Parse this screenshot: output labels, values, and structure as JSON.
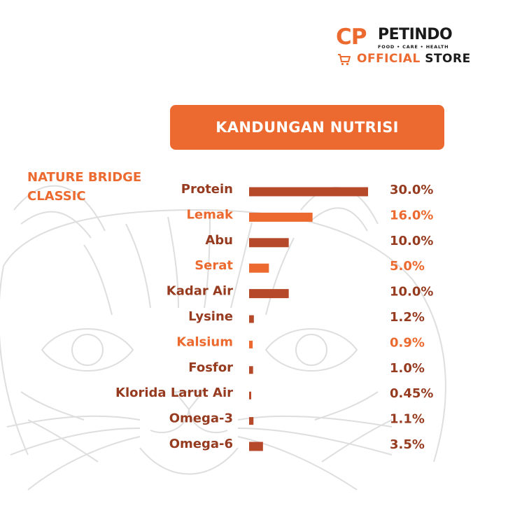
{
  "logo": {
    "cp": "CP",
    "name": "PETINDO",
    "tagline": "FOOD • CARE • HEALTH",
    "official": "OFFICIAL",
    "store": "STORE"
  },
  "banner": {
    "title": "KANDUNGAN NUTRISI"
  },
  "product": {
    "line1": "NATURE BRIDGE",
    "line2": "CLASSIC"
  },
  "colors": {
    "accent": "#ec6a2f",
    "bar_dark": "#b6492a",
    "text_dark": "#963b1f",
    "text_orange": "#ec6a2f"
  },
  "icons": {
    "cart": "shopping-cart-icon",
    "background": "cat-face-illustration"
  },
  "chart_data": {
    "type": "bar",
    "orientation": "horizontal",
    "title": "KANDUNGAN NUTRISI",
    "categories": [
      "Protein",
      "Lemak",
      "Abu",
      "Serat",
      "Kadar Air",
      "Lysine",
      "Kalsium",
      "Fosfor",
      "Klorida Larut Air",
      "Omega-3",
      "Omega-6"
    ],
    "values": [
      30.0,
      16.0,
      10.0,
      5.0,
      10.0,
      1.2,
      0.9,
      1.0,
      0.45,
      1.1,
      3.5
    ],
    "value_labels": [
      "30.0%",
      "16.0%",
      "10.0%",
      "5.0%",
      "10.0%",
      "1.2%",
      "0.9%",
      "1.0%",
      "0.45%",
      "1.1%",
      "3.5%"
    ],
    "highlight": [
      false,
      true,
      false,
      true,
      false,
      false,
      true,
      false,
      false,
      false,
      false
    ],
    "unit": "%",
    "grid": false,
    "legend": "none"
  }
}
